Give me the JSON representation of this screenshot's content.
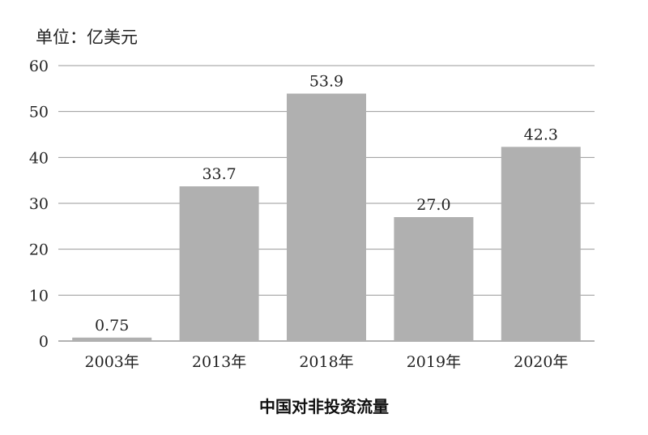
{
  "chart_data": {
    "type": "bar",
    "unit_label": "单位：亿美元",
    "categories": [
      "2003年",
      "2013年",
      "2018年",
      "2019年",
      "2020年"
    ],
    "values": [
      0.75,
      33.7,
      53.9,
      27.0,
      42.3
    ],
    "value_labels": [
      "0.75",
      "33.7",
      "53.9",
      "27.0",
      "42.3"
    ],
    "ylim": [
      0,
      60
    ],
    "yticks": [
      0,
      10,
      20,
      30,
      40,
      50,
      60
    ],
    "grid": true,
    "bar_color": "#b0b0b0",
    "grid_color": "#999999",
    "xlabel": "中国对非投资流量"
  }
}
